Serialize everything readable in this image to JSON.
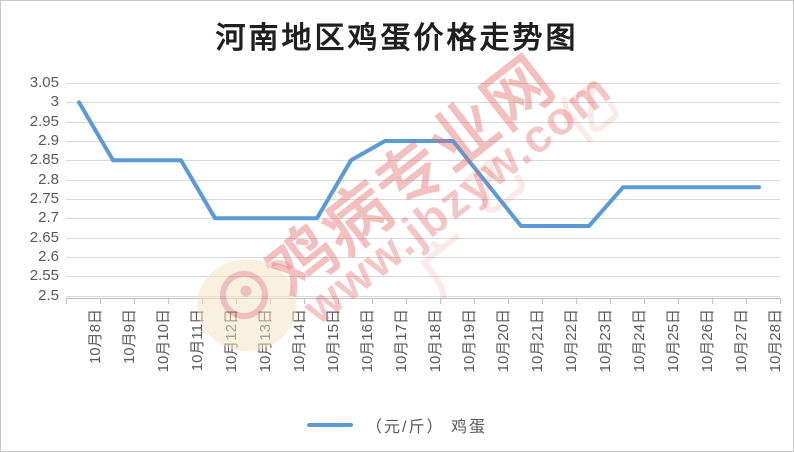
{
  "title": "河南地区鸡蛋价格走势图",
  "legend": {
    "label": "（元/斤） 鸡蛋"
  },
  "watermark": {
    "brand": "鸡病专业网",
    "url": "www.jbzyw.com",
    "faint_chars": [
      "广",
      "乙",
      "亿"
    ],
    "logo": "rooster-logo",
    "color": "#E26A6A"
  },
  "colors": {
    "line": "#5B9BD5",
    "grid": "#D9D9D9",
    "axis": "#BFBFBF",
    "labels": "#595959",
    "title": "#1F1F1F"
  },
  "chart_data": {
    "type": "line",
    "title": "河南地区鸡蛋价格走势图",
    "x": [
      "10月8日",
      "10月9日",
      "10月10日",
      "10月11日",
      "10月12日",
      "10月13日",
      "10月14日",
      "10月15日",
      "10月16日",
      "10月17日",
      "10月18日",
      "10月19日",
      "10月20日",
      "10月21日",
      "10月22日",
      "10月23日",
      "10月24日",
      "10月25日",
      "10月26日",
      "10月27日",
      "10月28日"
    ],
    "series": [
      {
        "name": "（元/斤） 鸡蛋",
        "values": [
          3.0,
          2.85,
          2.85,
          2.85,
          2.7,
          2.7,
          2.7,
          2.7,
          2.85,
          2.9,
          2.9,
          2.9,
          2.79,
          2.68,
          2.68,
          2.68,
          2.78,
          2.78,
          2.78,
          2.78,
          2.78
        ]
      }
    ],
    "xlabel": "",
    "ylabel": "",
    "ylim": [
      2.5,
      3.05
    ],
    "ytick_step": 0.05,
    "yticks": [
      "3.05",
      "3",
      "2.95",
      "2.9",
      "2.85",
      "2.8",
      "2.75",
      "2.7",
      "2.65",
      "2.6",
      "2.55",
      "2.5"
    ],
    "grid": true,
    "legend_position": "bottom",
    "line_color": "#5B9BD5"
  }
}
